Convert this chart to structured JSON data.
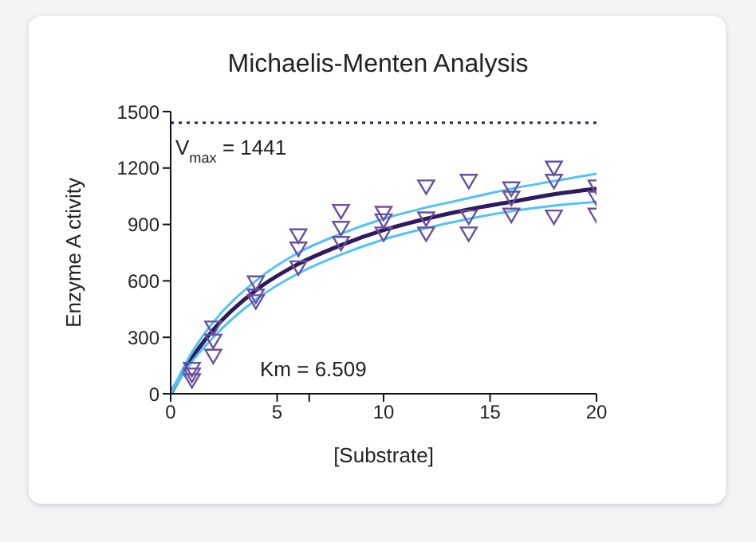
{
  "chart_data": {
    "type": "scatter",
    "title": "Michaelis-Menten Analysis",
    "xlabel": "[Substrate]",
    "ylabel": "Enzyme A ctivity",
    "xlim": [
      0,
      20
    ],
    "xticks": [
      0,
      5,
      {
        "value": 6.509,
        "label": null
      },
      10,
      15,
      20
    ],
    "ylim": [
      0,
      1500
    ],
    "yticks": [
      0,
      300,
      600,
      900,
      1200,
      1500
    ],
    "series": [
      {
        "color": "#6b4fa0",
        "marker": "triangle",
        "x": [
          1,
          1,
          1,
          2,
          2,
          2,
          4,
          4,
          4,
          6,
          6,
          6,
          8,
          8,
          8,
          10,
          10,
          10,
          12,
          12,
          12,
          14,
          14,
          14,
          16,
          16,
          16,
          18,
          18,
          18,
          20,
          20,
          20
        ],
        "values": [
          130,
          100,
          70,
          350,
          280,
          200,
          590,
          520,
          490,
          840,
          770,
          670,
          970,
          880,
          800,
          960,
          920,
          850,
          1100,
          930,
          850,
          1130,
          940,
          850,
          1090,
          1040,
          950,
          1200,
          1130,
          940,
          1100,
          1040,
          950
        ]
      },
      {
        "type": "line",
        "color": "#2e1a5c",
        "x": [
          0,
          1,
          2,
          4,
          6,
          8,
          10,
          12,
          14,
          16,
          18,
          20
        ],
        "values": [
          0,
          190,
          340,
          550,
          690,
          790,
          870,
          930,
          980,
          1020,
          1060,
          1090
        ]
      },
      {
        "type": "line",
        "color": "#4fc3f7",
        "x": [
          0,
          1,
          2,
          4,
          6,
          8,
          10,
          12,
          14,
          16,
          18,
          20
        ],
        "values": [
          0,
          220,
          380,
          600,
          750,
          850,
          930,
          990,
          1040,
          1090,
          1130,
          1170
        ]
      },
      {
        "type": "line",
        "color": "#4fc3f7",
        "x": [
          0,
          1,
          2,
          4,
          6,
          8,
          10,
          12,
          14,
          16,
          18,
          20
        ],
        "values": [
          0,
          170,
          300,
          500,
          640,
          740,
          820,
          880,
          930,
          970,
          1000,
          1020
        ]
      }
    ],
    "ref_lines": [
      {
        "axis": "y",
        "value": 1441,
        "label": "V$_{max}$ = 1441",
        "color": "#2e1a5c",
        "line_style": "dotted"
      }
    ],
    "annotations": [
      "Km = 6.509"
    ]
  }
}
